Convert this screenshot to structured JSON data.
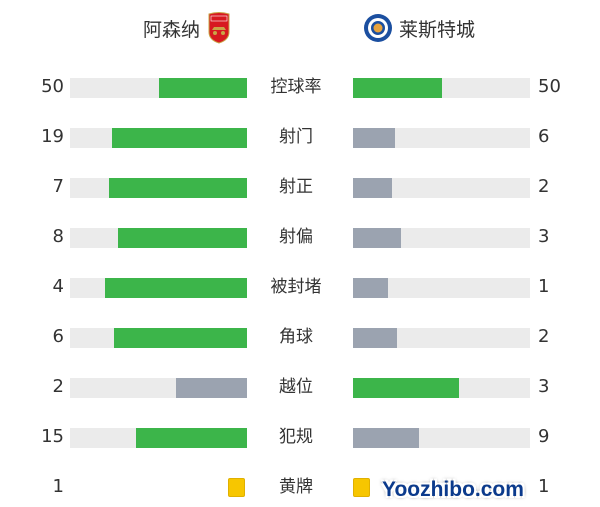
{
  "header": {
    "home_team": "阿森纳",
    "away_team": "莱斯特城",
    "home_logo": "arsenal-crest-icon",
    "away_logo": "leicester-city-crest-icon"
  },
  "colors": {
    "leader": "#3cb54a",
    "trailer": "#9ba3b0",
    "track": "#ebebeb",
    "yellow_card": "#f7c600"
  },
  "stats": [
    {
      "label": "控球率",
      "home": "50",
      "away": "50"
    },
    {
      "label": "射门",
      "home": "19",
      "away": "6"
    },
    {
      "label": "射正",
      "home": "7",
      "away": "2"
    },
    {
      "label": "射偏",
      "home": "8",
      "away": "3"
    },
    {
      "label": "被封堵",
      "home": "4",
      "away": "1"
    },
    {
      "label": "角球",
      "home": "6",
      "away": "2"
    },
    {
      "label": "越位",
      "home": "2",
      "away": "3"
    },
    {
      "label": "犯规",
      "home": "15",
      "away": "9"
    }
  ],
  "yellow_cards": {
    "label": "黄牌",
    "home": "1",
    "away": "1"
  },
  "watermark": "Yoozhibo.com"
}
